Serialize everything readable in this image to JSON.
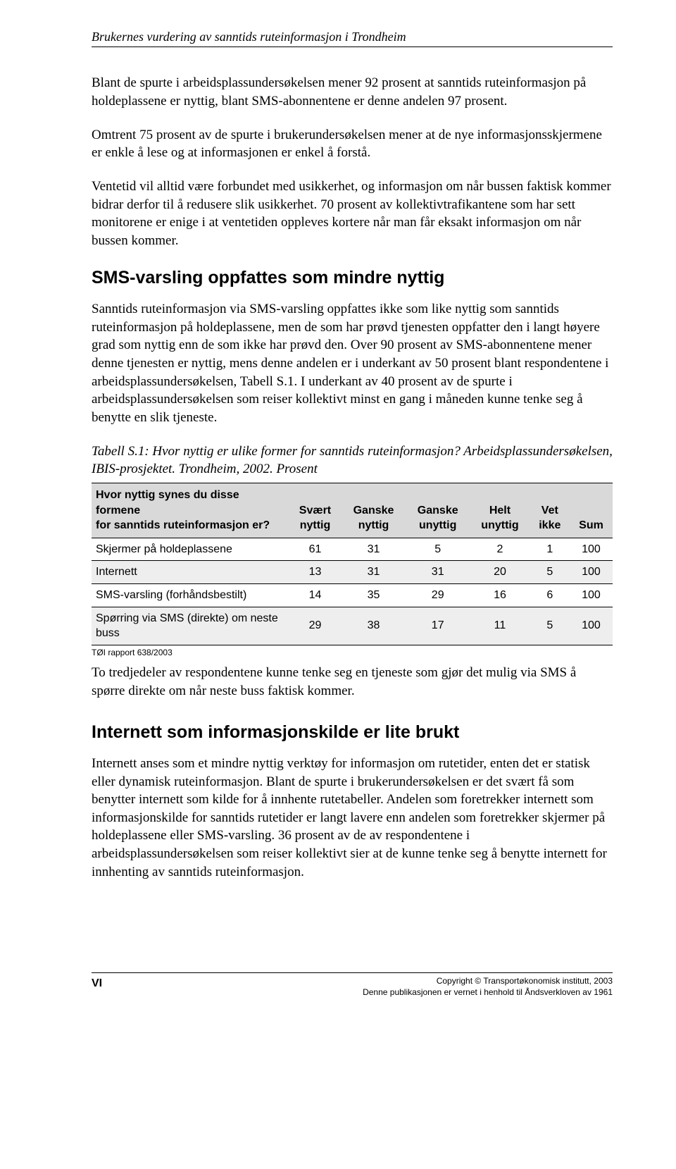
{
  "header": {
    "running_title": "Brukernes vurdering av sanntids ruteinformasjon i Trondheim"
  },
  "paragraphs": {
    "p1": "Blant de spurte i arbeidsplassundersøkelsen mener 92 prosent at sanntids ruteinformasjon på holdeplassene er nyttig, blant SMS-abonnentene er denne andelen 97 prosent.",
    "p2": "Omtrent 75 prosent av de spurte i brukerundersøkelsen mener at de nye informasjonsskjermene er enkle å lese og at informasjonen er enkel å forstå.",
    "p3": "Ventetid vil alltid være forbundet med usikkerhet, og informasjon om når bussen faktisk kommer bidrar derfor til å redusere slik usikkerhet. 70 prosent av kollektivtrafikantene som har sett monitorene er enige i at ventetiden oppleves kortere når man får eksakt informasjon om når bussen kommer.",
    "h_sms": "SMS-varsling oppfattes som mindre nyttig",
    "p4": "Sanntids ruteinformasjon via SMS-varsling oppfattes ikke som like nyttig som sanntids ruteinformasjon på holdeplassene, men de som har prøvd tjenesten oppfatter den i langt høyere grad som nyttig enn de som ikke har prøvd den. Over 90 prosent av SMS-abonnentene mener denne tjenesten er nyttig, mens denne andelen er i underkant av 50 prosent blant respondentene i arbeidsplassundersøkelsen, Tabell S.1. I underkant av 40 prosent av de spurte i arbeidsplassundersøkelsen som reiser kollektivt minst en gang i måneden kunne tenke seg å benytte en slik tjeneste.",
    "table_caption": "Tabell S.1: Hvor nyttig er ulike former for sanntids ruteinformasjon? Arbeidsplassundersøkelsen, IBIS-prosjektet. Trondheim, 2002. Prosent",
    "table_source": "TØI rapport 638/2003",
    "p5": "To tredjedeler av respondentene kunne tenke seg en tjeneste som gjør det mulig via SMS å spørre direkte om når neste buss faktisk kommer.",
    "h_internet": "Internett som informasjonskilde er lite brukt",
    "p6": "Internett anses som et mindre nyttig verktøy for informasjon om rutetider, enten det er statisk eller dynamisk ruteinformasjon. Blant de spurte i brukerundersøkelsen er det svært få som benytter internett som kilde for å innhente rutetabeller. Andelen som foretrekker internett som informasjonskilde for sanntids rutetider er langt lavere enn andelen som foretrekker skjermer på holdeplassene eller SMS-varsling. 36 prosent av de av respondentene i arbeidsplassundersøkelsen som reiser kollektivt sier at de kunne tenke seg å benytte internett for innhenting av sanntids ruteinformasjon."
  },
  "table": {
    "header_rowlabel_line1": "Hvor nyttig synes du disse formene",
    "header_rowlabel_line2": "for sanntids ruteinformasjon er?",
    "columns": [
      {
        "line1": "Svært",
        "line2": "nyttig"
      },
      {
        "line1": "Ganske",
        "line2": "nyttig"
      },
      {
        "line1": "Ganske",
        "line2": "unyttig"
      },
      {
        "line1": "Helt",
        "line2": "unyttig"
      },
      {
        "line1": "Vet",
        "line2": "ikke"
      },
      {
        "line1": "",
        "line2": "Sum"
      }
    ],
    "rows": [
      {
        "label": "Skjermer på holdeplassene",
        "cells": [
          "61",
          "31",
          "5",
          "2",
          "1",
          "100"
        ],
        "shaded": false
      },
      {
        "label": "Internett",
        "cells": [
          "13",
          "31",
          "31",
          "20",
          "5",
          "100"
        ],
        "shaded": true
      },
      {
        "label": "SMS-varsling (forhåndsbestilt)",
        "cells": [
          "14",
          "35",
          "29",
          "16",
          "6",
          "100"
        ],
        "shaded": false
      },
      {
        "label": "Spørring via SMS (direkte) om neste buss",
        "cells": [
          "29",
          "38",
          "17",
          "11",
          "5",
          "100"
        ],
        "shaded": true
      }
    ]
  },
  "footer": {
    "page_number": "VI",
    "copyright_line1": "Copyright © Transportøkonomisk institutt, 2003",
    "copyright_line2": "Denne publikasjonen er vernet i henhold til Åndsverkloven av 1961"
  },
  "colors": {
    "text": "#000000",
    "background": "#ffffff",
    "table_header_bg": "#d9d9d9",
    "table_row_shaded": "#eeeeee",
    "rule": "#000000"
  },
  "typography": {
    "body_font": "Times New Roman",
    "body_size_pt": 14,
    "heading_font": "Arial",
    "heading_size_pt": 19,
    "table_font": "Arial",
    "table_size_pt": 12,
    "footer_small_pt": 9
  }
}
